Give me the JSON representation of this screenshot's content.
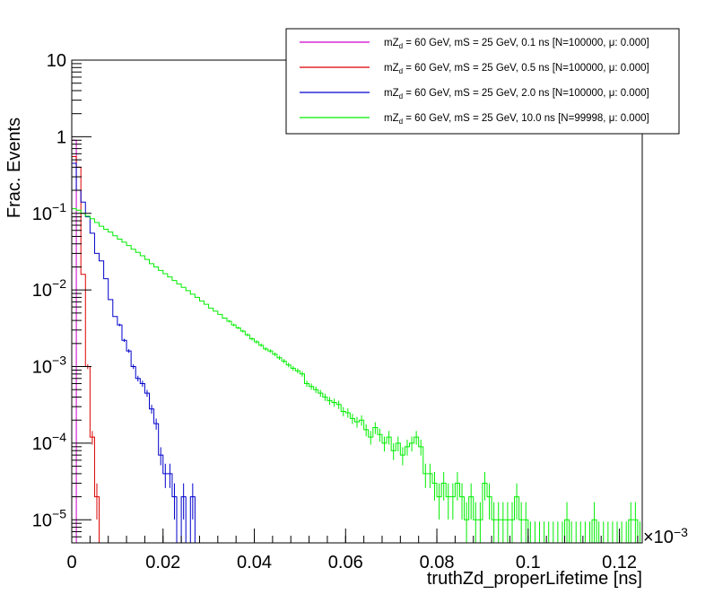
{
  "chart_data": {
    "type": "line",
    "title": "",
    "xlabel": "truthZd_properLifetime [ns]",
    "ylabel": "Frac. Events",
    "x_multiplier_label": "×10",
    "x_multiplier_exp": "−3",
    "xlim": [
      0,
      0.125
    ],
    "ylim": [
      5e-06,
      10
    ],
    "log_y": true,
    "grid": false,
    "legend_position": "top-right",
    "x_ticks": [
      {
        "value": 0,
        "label": "0"
      },
      {
        "value": 0.02,
        "label": "0.02"
      },
      {
        "value": 0.04,
        "label": "0.04"
      },
      {
        "value": 0.06,
        "label": "0.06"
      },
      {
        "value": 0.08,
        "label": "0.08"
      },
      {
        "value": 0.1,
        "label": "0.1"
      },
      {
        "value": 0.12,
        "label": "0.12"
      }
    ],
    "y_ticks": [
      {
        "value": 1e-05,
        "base": "10",
        "exp": "−5"
      },
      {
        "value": 0.0001,
        "base": "10",
        "exp": "−4"
      },
      {
        "value": 0.001,
        "base": "10",
        "exp": "−3"
      },
      {
        "value": 0.01,
        "base": "10",
        "exp": "−2"
      },
      {
        "value": 0.1,
        "base": "10",
        "exp": "−1"
      },
      {
        "value": 1,
        "base": "1",
        "exp": ""
      },
      {
        "value": 10,
        "base": "10",
        "exp": ""
      }
    ],
    "bin_width": 0.001,
    "series": [
      {
        "name_main": "mZ",
        "name_sub": "d",
        "name_rest": " = 60 GeV, mS = 25 GeV, 0.1 ns [N=100000, μ: 0.000]",
        "color": "#cc00cc",
        "x_start": 0,
        "values": [
          0.9
        ]
      },
      {
        "name_main": "mZ",
        "name_sub": "d",
        "name_rest": " = 60 GeV, mS = 25 GeV, 0.5 ns [N=100000, μ: 0.000]",
        "color": "#dd0000",
        "x_start": 0,
        "values": [
          0.55,
          0.4,
          0.016,
          0.001,
          0.00012,
          2e-05
        ]
      },
      {
        "name_main": "mZ",
        "name_sub": "d",
        "name_rest": " = 60 GeV, mS = 25 GeV, 2.0 ns [N=100000, μ: 0.000]",
        "color": "#0000cc",
        "x_start": 0,
        "values": [
          0.45,
          0.2,
          0.14,
          0.09,
          0.055,
          0.03,
          0.024,
          0.014,
          0.0075,
          0.0045,
          0.0035,
          0.0022,
          0.0016,
          0.001,
          0.0007,
          0.0006,
          0.00045,
          0.00028,
          0.00018,
          7e-05,
          4e-05,
          4e-05,
          2e-05,
          0,
          2e-05,
          0,
          2e-05
        ]
      },
      {
        "name_main": "mZ",
        "name_sub": "d",
        "name_rest": " = 60 GeV, mS = 25 GeV, 10.0 ns [N=99998, μ: 0.000]",
        "color": "#00ee00",
        "x_start": 0,
        "values": [
          0.115,
          0.11,
          0.1,
          0.092,
          0.085,
          0.076,
          0.068,
          0.062,
          0.057,
          0.051,
          0.046,
          0.042,
          0.038,
          0.034,
          0.031,
          0.028,
          0.025,
          0.022,
          0.02,
          0.018,
          0.0163,
          0.0148,
          0.0133,
          0.012,
          0.0108,
          0.0098,
          0.0088,
          0.008,
          0.0072,
          0.0065,
          0.0058,
          0.0053,
          0.0048,
          0.0043,
          0.0039,
          0.0035,
          0.0032,
          0.0029,
          0.0026,
          0.0023,
          0.0021,
          0.0019,
          0.0017,
          0.0016,
          0.00145,
          0.0013,
          0.00118,
          0.00105,
          0.00095,
          0.00088,
          0.0008,
          0.0006,
          0.00055,
          0.0005,
          0.00045,
          0.0004,
          0.00036,
          0.00034,
          0.00032,
          0.00026,
          0.00025,
          0.00021,
          0.00019,
          0.0002,
          0.00015,
          0.00012,
          0.00016,
          0.00013,
          0.0001,
          0.00012,
          8e-05,
          0.0001,
          7e-05,
          9e-05,
          0.0001,
          0.00012,
          9e-05,
          4e-05,
          4e-05,
          3e-05,
          2e-05,
          3e-05,
          2e-05,
          2e-05,
          3e-05,
          2e-05,
          1e-05,
          2e-05,
          1e-05,
          1e-05,
          3e-05,
          2e-05,
          1e-05,
          1e-05,
          1e-05,
          1e-05,
          1e-05,
          2e-05,
          1e-05,
          1e-05,
          5e-06,
          5e-06,
          5e-06,
          5e-06,
          5e-06,
          5e-06,
          5e-06,
          5e-06,
          1e-05,
          5e-06,
          5e-06,
          5e-06,
          5e-06,
          5e-06,
          1e-05,
          5e-06,
          5e-06,
          5e-06,
          5e-06,
          5e-06,
          5e-06,
          5e-06,
          1e-05,
          1e-05,
          5e-06
        ]
      }
    ]
  }
}
